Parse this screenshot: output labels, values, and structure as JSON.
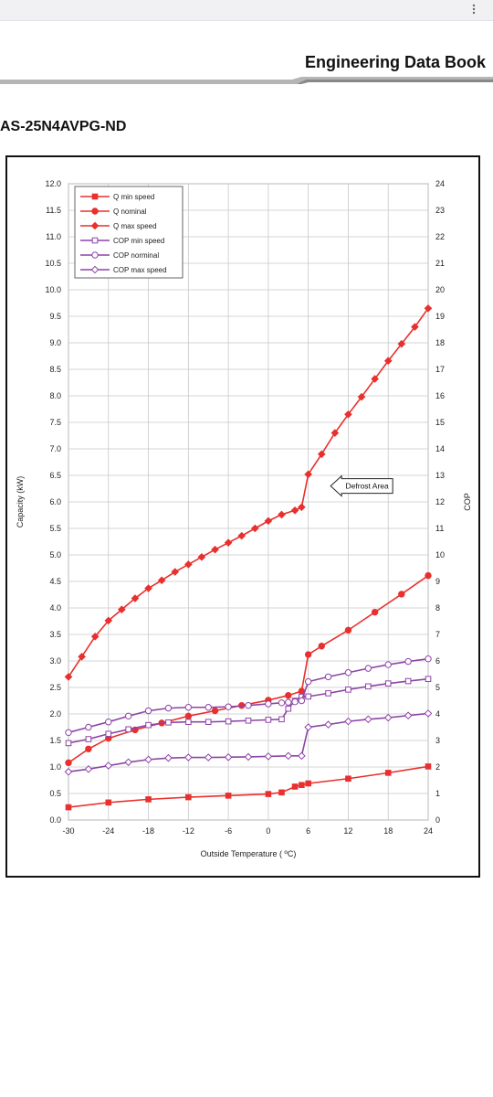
{
  "header": {
    "title": "Engineering Data Book"
  },
  "model": "AS-25N4AVPG-ND",
  "chart_data": {
    "type": "line",
    "xlabel": "Outside Temperature ( ºC)",
    "ylabel_left": "Capacity (kW)",
    "ylabel_right": "COP",
    "xlim": [
      -30,
      24
    ],
    "ylim_left": [
      0,
      12
    ],
    "ylim_right": [
      0,
      24
    ],
    "x_ticks": [
      "-30",
      "-24",
      "-18",
      "-12",
      "-6",
      "0",
      "6",
      "12",
      "18",
      "24"
    ],
    "y_left_ticks": [
      "0.0",
      "0.5",
      "1.0",
      "1.5",
      "2.0",
      "2.5",
      "3.0",
      "3.5",
      "4.0",
      "4.5",
      "5.0",
      "5.5",
      "6.0",
      "6.5",
      "7.0",
      "7.5",
      "8.0",
      "8.5",
      "9.0",
      "9.5",
      "10.0",
      "10.5",
      "11.0",
      "11.5",
      "12.0"
    ],
    "y_right_ticks": [
      "0",
      "1",
      "2",
      "3",
      "4",
      "5",
      "6",
      "7",
      "8",
      "9",
      "10",
      "11",
      "12",
      "13",
      "14",
      "15",
      "16",
      "17",
      "18",
      "19",
      "20",
      "21",
      "22",
      "23",
      "24"
    ],
    "grid": true,
    "legend_position": "top-left",
    "annotation": {
      "text": "Defrost Area",
      "x": 11,
      "y": 6.3
    },
    "series": [
      {
        "name": "Q min speed",
        "axis": "left",
        "marker": "square-filled",
        "color": "#e8302e",
        "points": [
          [
            -30,
            0.24
          ],
          [
            -24,
            0.33
          ],
          [
            -18,
            0.39
          ],
          [
            -12,
            0.43
          ],
          [
            -6,
            0.46
          ],
          [
            0,
            0.49
          ],
          [
            2,
            0.52
          ],
          [
            4,
            0.63
          ],
          [
            5,
            0.66
          ],
          [
            6,
            0.69
          ],
          [
            12,
            0.78
          ],
          [
            18,
            0.89
          ],
          [
            24,
            1.01
          ]
        ]
      },
      {
        "name": "Q nominal",
        "axis": "left",
        "marker": "circle-filled",
        "color": "#e8302e",
        "points": [
          [
            -30,
            1.08
          ],
          [
            -27,
            1.34
          ],
          [
            -24,
            1.54
          ],
          [
            -20,
            1.7
          ],
          [
            -16,
            1.83
          ],
          [
            -12,
            1.96
          ],
          [
            -8,
            2.06
          ],
          [
            -4,
            2.16
          ],
          [
            0,
            2.26
          ],
          [
            3,
            2.35
          ],
          [
            5,
            2.43
          ],
          [
            6,
            3.12
          ],
          [
            8,
            3.28
          ],
          [
            12,
            3.58
          ],
          [
            16,
            3.92
          ],
          [
            20,
            4.26
          ],
          [
            24,
            4.61
          ]
        ]
      },
      {
        "name": "Q max speed",
        "axis": "left",
        "marker": "diamond-filled",
        "color": "#e8302e",
        "points": [
          [
            -30,
            2.7
          ],
          [
            -28,
            3.08
          ],
          [
            -26,
            3.46
          ],
          [
            -24,
            3.76
          ],
          [
            -22,
            3.97
          ],
          [
            -20,
            4.18
          ],
          [
            -18,
            4.37
          ],
          [
            -16,
            4.52
          ],
          [
            -14,
            4.68
          ],
          [
            -12,
            4.82
          ],
          [
            -10,
            4.96
          ],
          [
            -8,
            5.1
          ],
          [
            -6,
            5.23
          ],
          [
            -4,
            5.36
          ],
          [
            -2,
            5.5
          ],
          [
            0,
            5.64
          ],
          [
            2,
            5.76
          ],
          [
            4,
            5.84
          ],
          [
            5,
            5.9
          ],
          [
            6,
            6.52
          ],
          [
            8,
            6.9
          ],
          [
            10,
            7.3
          ],
          [
            12,
            7.65
          ],
          [
            14,
            7.98
          ],
          [
            16,
            8.32
          ],
          [
            18,
            8.66
          ],
          [
            20,
            8.98
          ],
          [
            22,
            9.3
          ],
          [
            24,
            9.65
          ]
        ]
      },
      {
        "name": "COP min speed",
        "axis": "right",
        "marker": "square-open",
        "color": "#8e44a6",
        "points": [
          [
            -30,
            2.9
          ],
          [
            -27,
            3.05
          ],
          [
            -24,
            3.25
          ],
          [
            -21,
            3.42
          ],
          [
            -18,
            3.58
          ],
          [
            -15,
            3.68
          ],
          [
            -12,
            3.7
          ],
          [
            -9,
            3.7
          ],
          [
            -6,
            3.72
          ],
          [
            -3,
            3.75
          ],
          [
            0,
            3.78
          ],
          [
            2,
            3.8
          ],
          [
            3,
            4.2
          ],
          [
            4,
            4.5
          ],
          [
            5,
            4.65
          ],
          [
            6,
            4.66
          ],
          [
            9,
            4.78
          ],
          [
            12,
            4.92
          ],
          [
            15,
            5.04
          ],
          [
            18,
            5.15
          ],
          [
            21,
            5.24
          ],
          [
            24,
            5.32
          ]
        ]
      },
      {
        "name": "COP norminal",
        "axis": "right",
        "marker": "circle-open",
        "color": "#8e44a6",
        "points": [
          [
            -30,
            3.3
          ],
          [
            -27,
            3.5
          ],
          [
            -24,
            3.7
          ],
          [
            -21,
            3.92
          ],
          [
            -18,
            4.12
          ],
          [
            -15,
            4.22
          ],
          [
            -12,
            4.25
          ],
          [
            -9,
            4.25
          ],
          [
            -6,
            4.27
          ],
          [
            -3,
            4.32
          ],
          [
            0,
            4.38
          ],
          [
            2,
            4.42
          ],
          [
            3,
            4.44
          ],
          [
            4,
            4.46
          ],
          [
            5,
            4.5
          ],
          [
            6,
            5.22
          ],
          [
            9,
            5.4
          ],
          [
            12,
            5.56
          ],
          [
            15,
            5.72
          ],
          [
            18,
            5.86
          ],
          [
            21,
            5.98
          ],
          [
            24,
            6.08
          ]
        ]
      },
      {
        "name": "COP max speed",
        "axis": "right",
        "marker": "diamond-open",
        "color": "#8e44a6",
        "points": [
          [
            -30,
            1.82
          ],
          [
            -27,
            1.92
          ],
          [
            -24,
            2.05
          ],
          [
            -21,
            2.18
          ],
          [
            -18,
            2.28
          ],
          [
            -15,
            2.34
          ],
          [
            -12,
            2.36
          ],
          [
            -9,
            2.36
          ],
          [
            -6,
            2.37
          ],
          [
            -3,
            2.38
          ],
          [
            0,
            2.4
          ],
          [
            3,
            2.42
          ],
          [
            5,
            2.42
          ],
          [
            6,
            3.5
          ],
          [
            9,
            3.6
          ],
          [
            12,
            3.72
          ],
          [
            15,
            3.8
          ],
          [
            18,
            3.86
          ],
          [
            21,
            3.94
          ],
          [
            24,
            4.02
          ]
        ]
      }
    ]
  }
}
